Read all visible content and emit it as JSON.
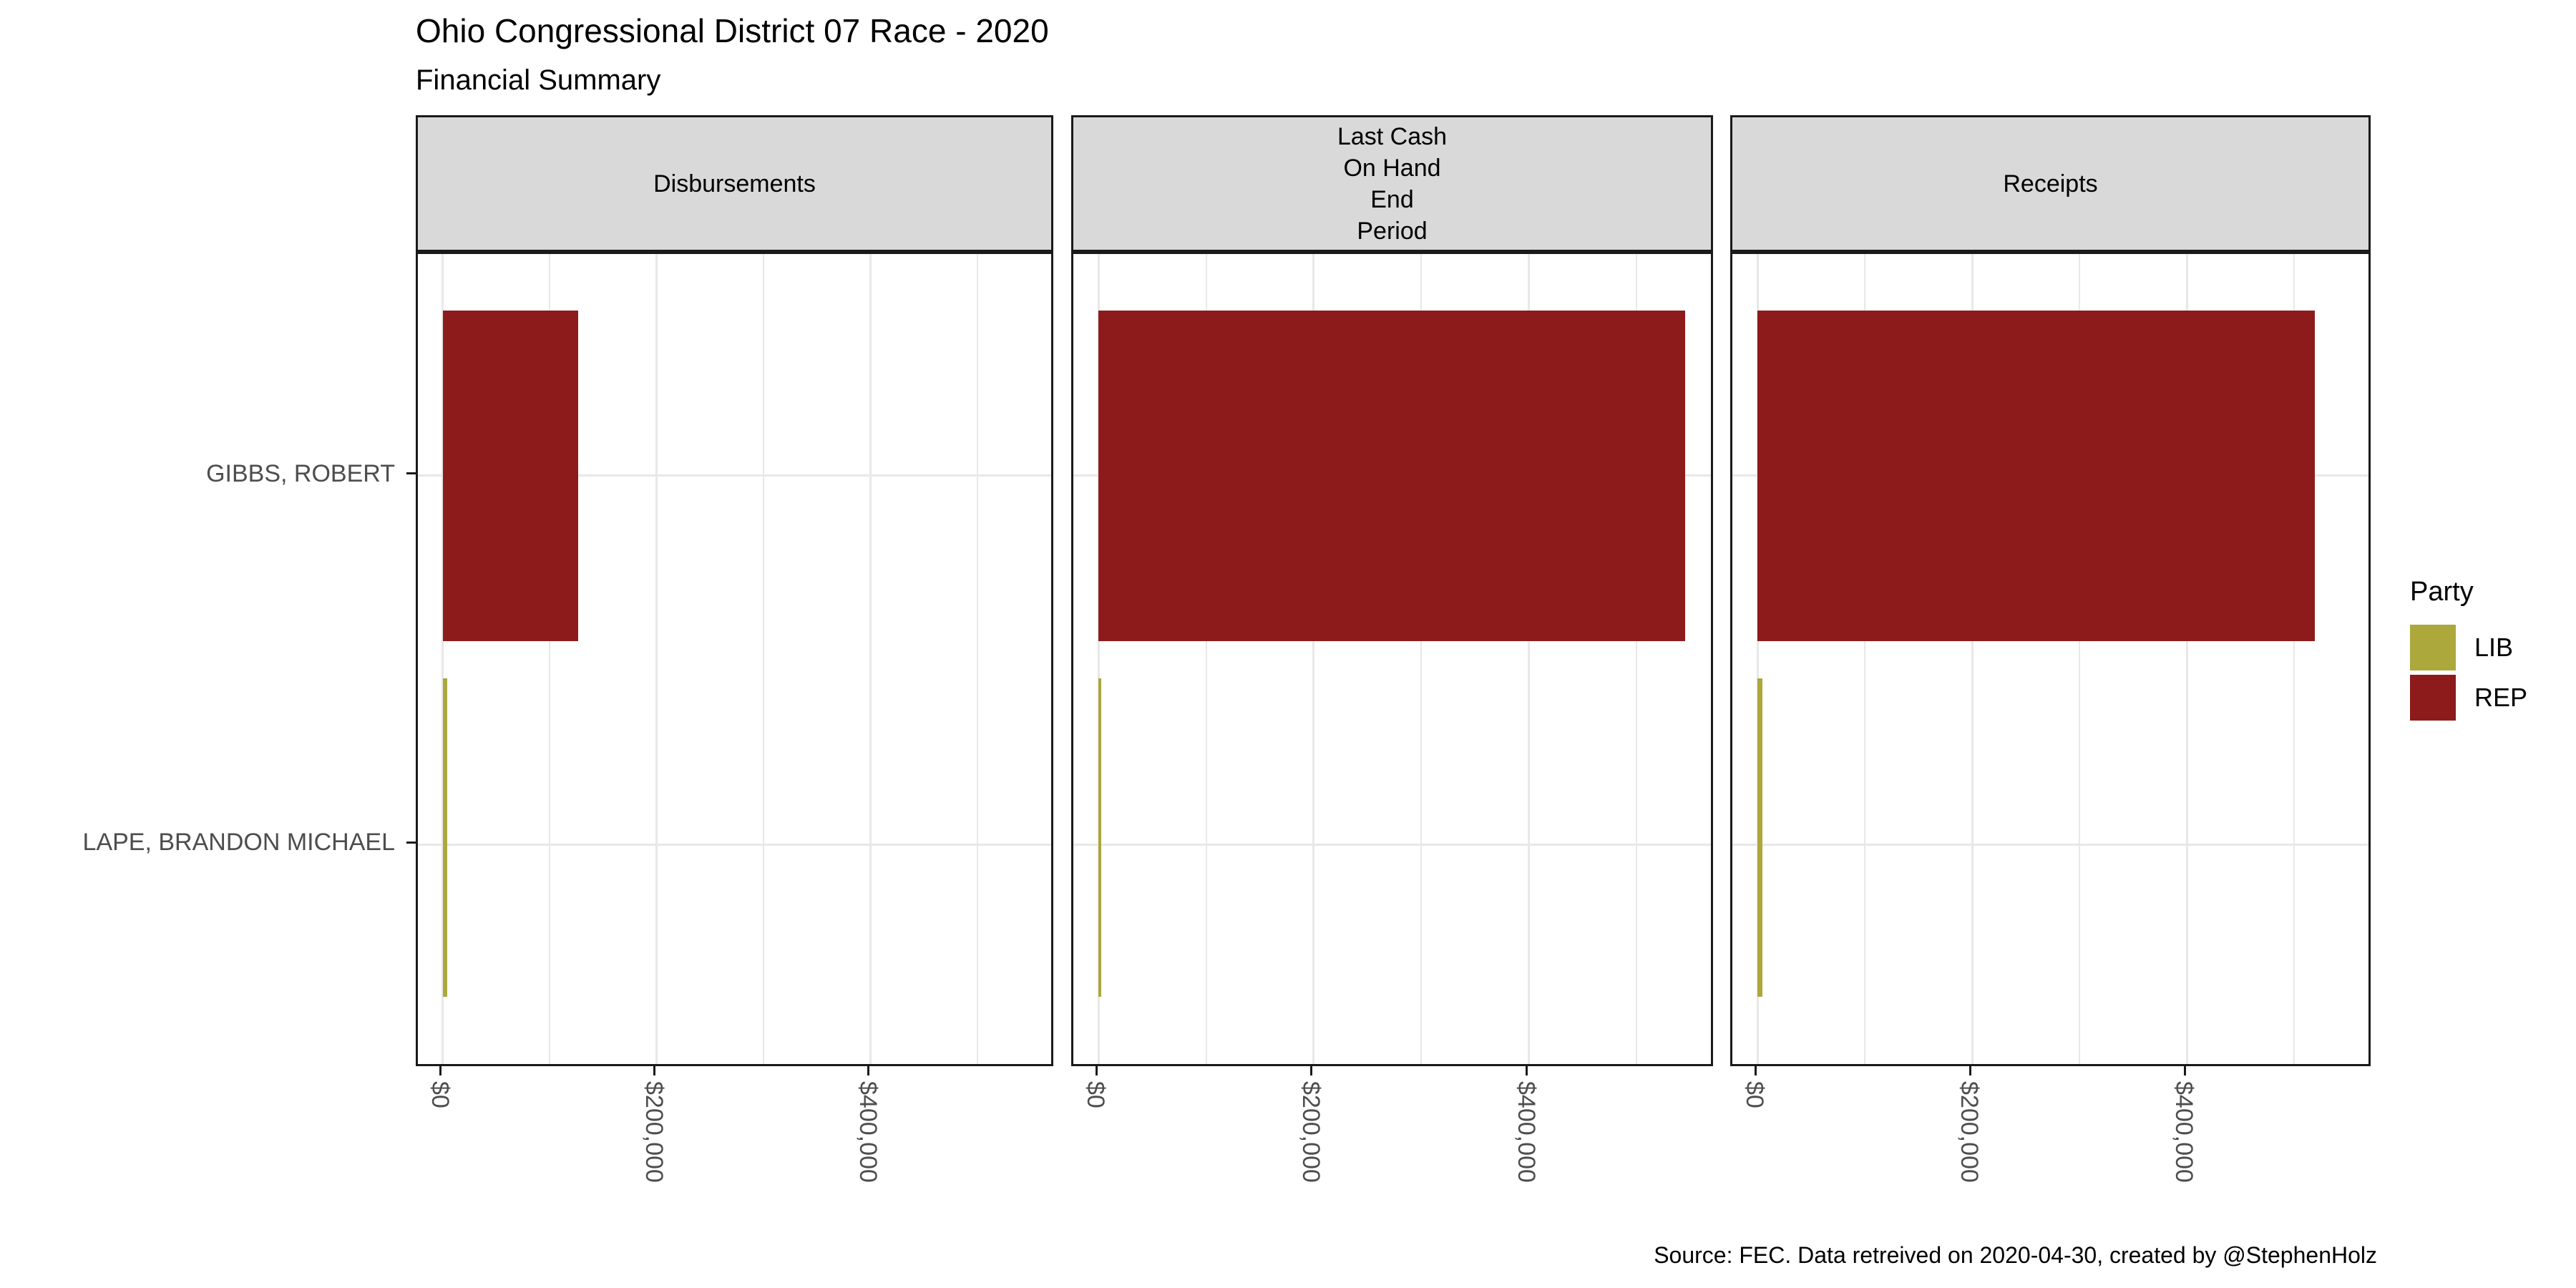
{
  "page": {
    "title": "Ohio Congressional District 07 Race - 2020",
    "subtitle": "Financial Summary",
    "caption": "Source: FEC. Data retreived on 2020-04-30, created by @StephenHolz"
  },
  "legend": {
    "title": "Party",
    "items": [
      {
        "label": "LIB",
        "color": "#ACA83C"
      },
      {
        "label": "REP",
        "color": "#8E1B1B"
      }
    ]
  },
  "chart_data": {
    "type": "bar",
    "orientation": "horizontal",
    "title": "Ohio Congressional District 07 Race - 2020",
    "subtitle": "Financial Summary",
    "caption": "Source: FEC. Data retreived on 2020-04-30, created by @StephenHolz",
    "categories": [
      "GIBBS, ROBERT",
      "LAPE, BRANDON MICHAEL"
    ],
    "category_parties": [
      "REP",
      "LIB"
    ],
    "facets": [
      {
        "label": "Disbursements",
        "values": [
          126500,
          4000
        ]
      },
      {
        "label": "Last Cash\nOn Hand\nEnd\nPeriod",
        "values": [
          545000,
          2600
        ]
      },
      {
        "label": "Receipts",
        "values": [
          519000,
          4700
        ]
      }
    ],
    "x_axis": {
      "tick_labels": [
        "$0",
        "$200,000",
        "$400,000"
      ],
      "tick_values": [
        0,
        200000,
        400000
      ],
      "minor_tick_values": [
        100000,
        300000,
        500000
      ],
      "display_domain": [
        -23400,
        573000
      ]
    },
    "y_axis": {
      "labels": [
        "GIBBS, ROBERT",
        "LAPE, BRANDON MICHAEL"
      ]
    },
    "colors": {
      "REP": "#8E1B1B",
      "LIB": "#ACA83C"
    },
    "grid": true,
    "legend_title": "Party",
    "legend_position": "right",
    "theme": {
      "strip_background": "#D9D9D9",
      "panel_border": "#1A1A1A",
      "gridline_color": "#E8E8E8",
      "axis_text_color": "#4D4D4D",
      "text_color": "#000000"
    }
  }
}
